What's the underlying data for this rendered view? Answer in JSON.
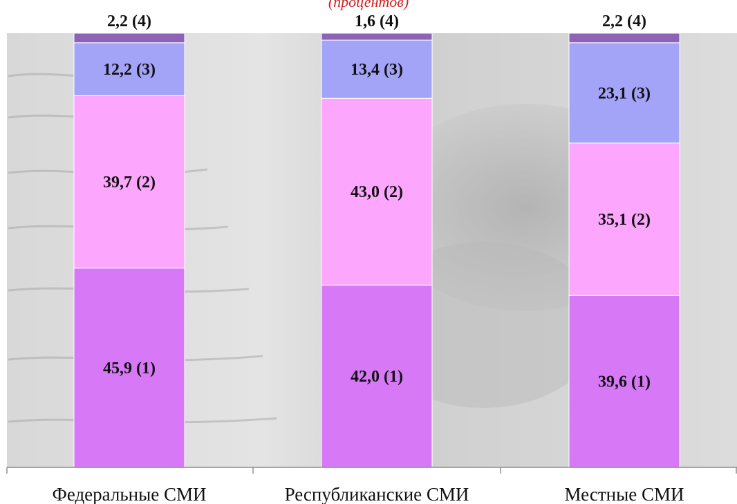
{
  "chart_data": {
    "type": "bar",
    "stacked": true,
    "subtitle": "(процентов)",
    "categories": [
      "Федеральные СМИ",
      "Республиканские СМИ",
      "Местные СМИ"
    ],
    "series": [
      {
        "rank": "(1)",
        "color": "#d779f7",
        "values": [
          45.9,
          42.0,
          39.6
        ],
        "labels": [
          "45,9 (1)",
          "42,0 (1)",
          "39,6 (1)"
        ]
      },
      {
        "rank": "(2)",
        "color": "#fda6fd",
        "values": [
          39.7,
          43.0,
          35.1
        ],
        "labels": [
          "39,7 (2)",
          "43,0 (2)",
          "35,1 (2)"
        ]
      },
      {
        "rank": "(3)",
        "color": "#a3a3f8",
        "values": [
          12.2,
          13.4,
          23.1
        ],
        "labels": [
          "12,2 (3)",
          "13,4 (3)",
          "23,1 (3)"
        ]
      },
      {
        "rank": "(4)",
        "color": "#8e62b6",
        "values": [
          2.2,
          1.6,
          2.2
        ],
        "labels": [
          "2,2 (4)",
          "1,6 (4)",
          "2,2 (4)"
        ]
      }
    ],
    "ylim": [
      0,
      100
    ],
    "grid": false,
    "legend": "none"
  }
}
